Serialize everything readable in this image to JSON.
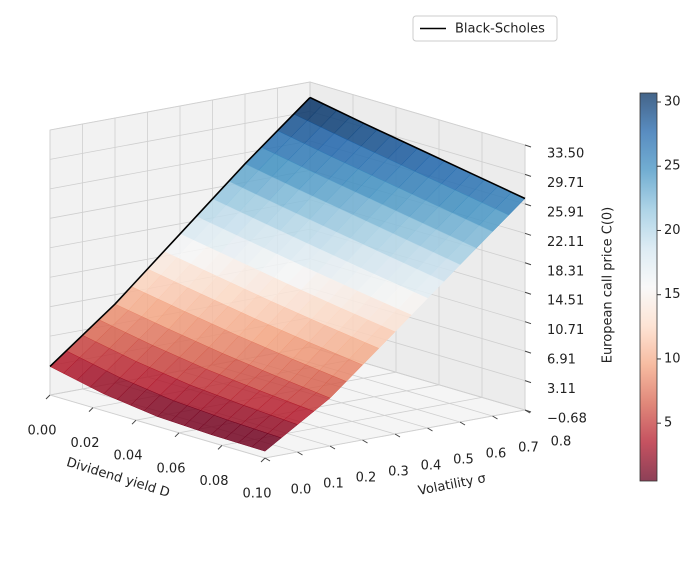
{
  "chart_data": {
    "type": "surface3d",
    "legend": [
      "Black-Scholes"
    ],
    "legend_loc": "upper center",
    "xlabel": "Dividend yield D",
    "ylabel": "Volatility σ",
    "zlabel": "European call price C(0)",
    "x": [
      0,
      0.025,
      0.05,
      0.075,
      0.1
    ],
    "y": [
      0,
      0.2,
      0.4,
      0.6,
      0.8
    ],
    "z": [
      [
        3.0,
        1.5,
        0.6,
        0.3,
        0.2
      ],
      [
        9.5,
        8.3,
        7.2,
        6.3,
        5.5
      ],
      [
        17.0,
        15.8,
        14.6,
        13.5,
        12.5
      ],
      [
        24.5,
        23.2,
        22.0,
        20.8,
        19.6
      ],
      [
        31.5,
        30.2,
        29.0,
        27.8,
        26.6
      ]
    ],
    "xlim": [
      0,
      0.1
    ],
    "ylim": [
      0,
      0.8
    ],
    "zlim": [
      -0.68,
      33.5
    ],
    "xticks": [
      {
        "value": 0,
        "label": "0.00"
      },
      {
        "value": 0.02,
        "label": "0.02"
      },
      {
        "value": 0.04,
        "label": "0.04"
      },
      {
        "value": 0.06,
        "label": "0.06"
      },
      {
        "value": 0.08,
        "label": "0.08"
      },
      {
        "value": 0.1,
        "label": "0.10"
      }
    ],
    "yticks": [
      {
        "value": 0,
        "label": "0.0"
      },
      0.1,
      0.2,
      0.3,
      0.4,
      0.5,
      0.6,
      0.7,
      0.8
    ],
    "zticks": [
      {
        "value": -0.68,
        "label": "−0.68"
      },
      3.11,
      6.91,
      10.71,
      14.51,
      18.31,
      22.11,
      25.91,
      29.71,
      {
        "value": 33.5,
        "label": "33.50"
      }
    ],
    "colormap": [
      "#67001f",
      "#b2182b",
      "#d6604d",
      "#f4a582",
      "#fddbc7",
      "#f7f7f7",
      "#d1e5f0",
      "#92c5de",
      "#4393c3",
      "#2166ac",
      "#053061"
    ],
    "clim": [
      0.5,
      30.7
    ],
    "cticks": [
      5,
      10,
      15,
      20,
      25,
      30
    ],
    "grid": true,
    "line_color": "#000000"
  }
}
